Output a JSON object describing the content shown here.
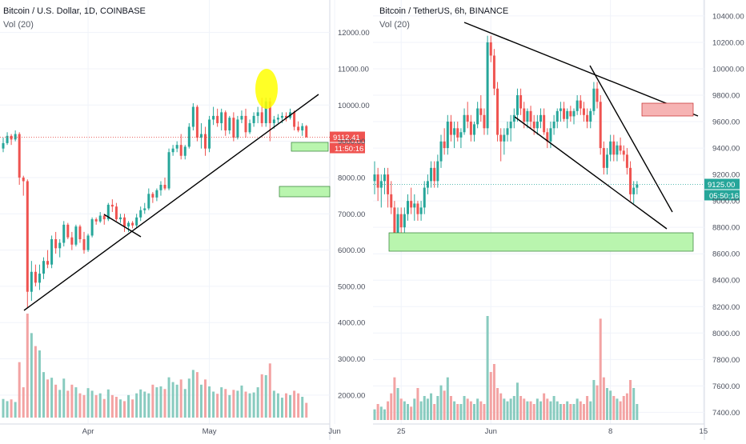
{
  "colors": {
    "up": "#26a69a",
    "down": "#ef5350",
    "up_vol": "#88cbbf",
    "down_vol": "#f3a3a3",
    "grid": "#f0f3fa",
    "axis_text": "#4a4f5c",
    "price_line": "#e53935",
    "price_line_right": "#26a69a",
    "zone_green": "#b9f5ae",
    "zone_red": "#f6b3b3",
    "highlight": "#ffff00"
  },
  "chart_data": [
    {
      "type": "candlestick",
      "title": "Bitcoin / U.S. Dollar, 1D, COINBASE",
      "volume_label": "Vol (20)",
      "y_ticks": [
        "12000.00",
        "11000.00",
        "10000.00",
        "9000.00",
        "8000.00",
        "7000.00",
        "6000.00",
        "5000.00",
        "4000.00",
        "3000.00",
        "2000.00"
      ],
      "x_ticks": [
        "Apr",
        "May",
        "Jun"
      ],
      "last_price": "9112.41",
      "countdown": "11:50:16",
      "ylim": [
        1600,
        12500
      ],
      "x_tick_index": [
        21,
        51,
        82
      ],
      "candles": [
        [
          8800,
          9100,
          8700,
          8950
        ],
        [
          8950,
          9250,
          8900,
          9150
        ],
        [
          9150,
          9200,
          8900,
          9050
        ],
        [
          9050,
          9300,
          9000,
          9200
        ],
        [
          9200,
          9250,
          7800,
          8000
        ],
        [
          8000,
          8050,
          7500,
          7900
        ],
        [
          7900,
          7950,
          4400,
          4850
        ],
        [
          4850,
          5700,
          4600,
          5400
        ],
        [
          5400,
          5600,
          5000,
          5100
        ],
        [
          5100,
          5600,
          4900,
          5350
        ],
        [
          5350,
          5800,
          5200,
          5700
        ],
        [
          5700,
          6000,
          5500,
          5600
        ],
        [
          5600,
          6400,
          5500,
          6300
        ],
        [
          6300,
          6500,
          5900,
          6050
        ],
        [
          6050,
          6300,
          5800,
          6200
        ],
        [
          6200,
          6800,
          6100,
          6700
        ],
        [
          6700,
          6750,
          6300,
          6350
        ],
        [
          6350,
          6500,
          6000,
          6150
        ],
        [
          6150,
          6700,
          6100,
          6650
        ],
        [
          6650,
          6700,
          6200,
          6300
        ],
        [
          6300,
          6500,
          5900,
          6000
        ],
        [
          6000,
          6450,
          5950,
          6400
        ],
        [
          6400,
          6900,
          6350,
          6850
        ],
        [
          6850,
          6900,
          6700,
          6790
        ],
        [
          6790,
          7050,
          6750,
          6950
        ],
        [
          6950,
          7000,
          6700,
          6850
        ],
        [
          6850,
          7300,
          6800,
          7250
        ],
        [
          7250,
          7400,
          7050,
          7200
        ],
        [
          7200,
          7300,
          6800,
          6850
        ],
        [
          6850,
          7000,
          6750,
          6900
        ],
        [
          6900,
          7000,
          6500,
          6650
        ],
        [
          6650,
          6800,
          6500,
          6750
        ],
        [
          6750,
          6800,
          6600,
          6680
        ],
        [
          6680,
          7000,
          6600,
          6900
        ],
        [
          6900,
          7200,
          6800,
          7100
        ],
        [
          7100,
          7300,
          7000,
          7150
        ],
        [
          7150,
          7700,
          7100,
          7550
        ],
        [
          7550,
          7600,
          7300,
          7450
        ],
        [
          7450,
          7700,
          7350,
          7650
        ],
        [
          7650,
          7900,
          7500,
          7800
        ],
        [
          7800,
          8000,
          7650,
          7700
        ],
        [
          7700,
          8800,
          7650,
          8700
        ],
        [
          8700,
          8900,
          8600,
          8800
        ],
        [
          8800,
          9000,
          8700,
          8900
        ],
        [
          8900,
          9200,
          8500,
          8600
        ],
        [
          8600,
          8900,
          8500,
          8850
        ],
        [
          8850,
          9500,
          8800,
          9400
        ],
        [
          9400,
          10050,
          9300,
          9950
        ],
        [
          9950,
          10000,
          9000,
          9100
        ],
        [
          9100,
          9500,
          8800,
          9200
        ],
        [
          9200,
          9400,
          8600,
          8800
        ],
        [
          8800,
          9700,
          8700,
          9600
        ],
        [
          9600,
          9950,
          9450,
          9700
        ],
        [
          9700,
          9900,
          9400,
          9500
        ],
        [
          9500,
          9900,
          9300,
          9800
        ],
        [
          9800,
          9850,
          9150,
          9300
        ],
        [
          9300,
          9700,
          9200,
          9650
        ],
        [
          9650,
          9800,
          9000,
          9100
        ],
        [
          9100,
          9700,
          9050,
          9600
        ],
        [
          9600,
          9850,
          9500,
          9700
        ],
        [
          9700,
          9900,
          9100,
          9250
        ],
        [
          9250,
          9600,
          9200,
          9500
        ],
        [
          9500,
          9800,
          9400,
          9700
        ],
        [
          9700,
          9950,
          9500,
          9800
        ],
        [
          9800,
          10200,
          9400,
          9500
        ],
        [
          9500,
          10200,
          9400,
          10100
        ],
        [
          10100,
          10200,
          9000,
          9500
        ],
        [
          9500,
          9700,
          9350,
          9600
        ],
        [
          9600,
          9750,
          9500,
          9650
        ],
        [
          9650,
          9800,
          9500,
          9700
        ],
        [
          9700,
          9800,
          9550,
          9650
        ],
        [
          9650,
          9900,
          9600,
          9800
        ],
        [
          9800,
          9850,
          9300,
          9400
        ],
        [
          9400,
          9550,
          9250,
          9300
        ],
        [
          9300,
          9500,
          9150,
          9420
        ],
        [
          9420,
          9450,
          9100,
          9112
        ]
      ],
      "volumes": [
        430,
        380,
        420,
        360,
        1280,
        700,
        2400,
        1950,
        1650,
        1550,
        1050,
        880,
        920,
        760,
        640,
        900,
        620,
        760,
        700,
        560,
        520,
        680,
        620,
        520,
        560,
        430,
        650,
        520,
        480,
        420,
        380,
        520,
        420,
        560,
        650,
        600,
        560,
        760,
        700,
        720,
        660,
        930,
        820,
        760,
        880,
        660,
        900,
        1100,
        1050,
        760,
        880,
        720,
        600,
        550,
        700,
        660,
        520,
        640,
        620,
        740,
        600,
        560,
        580,
        700,
        1000,
        980,
        1250,
        620,
        560,
        460,
        560,
        520,
        620,
        560,
        480,
        340
      ],
      "annotations": {
        "support_trendline": "ascending line beneath the lows",
        "small_line": "short descending segment in April",
        "highlight": "yellow ellipse at the June top",
        "zones": "two green support boxes"
      }
    },
    {
      "type": "candlestick",
      "title": "Bitcoin / TetherUS, 6h, BINANCE",
      "volume_label": "Vol (20)",
      "y_ticks": [
        "10400.00",
        "10200.00",
        "10000.00",
        "9800.00",
        "9600.00",
        "9400.00",
        "9200.00",
        "9000.00",
        "8800.00",
        "8600.00",
        "8400.00",
        "8200.00",
        "8000.00",
        "7800.00",
        "7600.00",
        "7400.00"
      ],
      "x_ticks": [
        "25",
        "Jun",
        "8",
        "15"
      ],
      "last_price": "9125.00",
      "countdown": "05:50:16",
      "ylim": [
        7360,
        10460
      ],
      "x_tick_index": [
        8,
        35,
        71,
        99
      ],
      "candles": [
        [
          9150,
          9300,
          9050,
          9200
        ],
        [
          9200,
          9250,
          9000,
          9100
        ],
        [
          9100,
          9200,
          8950,
          9150
        ],
        [
          9150,
          9250,
          9050,
          9200
        ],
        [
          9200,
          9250,
          8950,
          9050
        ],
        [
          9050,
          9150,
          8900,
          8950
        ],
        [
          8950,
          9000,
          8700,
          8750
        ],
        [
          8750,
          8950,
          8720,
          8900
        ],
        [
          8900,
          8950,
          8750,
          8800
        ],
        [
          8800,
          8950,
          8750,
          8900
        ],
        [
          8900,
          9050,
          8850,
          9000
        ],
        [
          9000,
          9100,
          8900,
          8950
        ],
        [
          8950,
          9050,
          8850,
          8980
        ],
        [
          8980,
          9000,
          8850,
          8900
        ],
        [
          8900,
          9000,
          8850,
          8950
        ],
        [
          8950,
          9150,
          8900,
          9100
        ],
        [
          9100,
          9200,
          9050,
          9150
        ],
        [
          9150,
          9300,
          9100,
          9250
        ],
        [
          9250,
          9300,
          9100,
          9150
        ],
        [
          9150,
          9350,
          9100,
          9300
        ],
        [
          9300,
          9500,
          9250,
          9450
        ],
        [
          9450,
          9550,
          9350,
          9400
        ],
        [
          9400,
          9650,
          9350,
          9600
        ],
        [
          9600,
          9650,
          9450,
          9500
        ],
        [
          9500,
          9600,
          9400,
          9550
        ],
        [
          9550,
          9600,
          9450,
          9480
        ],
        [
          9480,
          9550,
          9400,
          9520
        ],
        [
          9520,
          9700,
          9500,
          9650
        ],
        [
          9650,
          9750,
          9550,
          9600
        ],
        [
          9600,
          9650,
          9450,
          9500
        ],
        [
          9500,
          9600,
          9450,
          9580
        ],
        [
          9580,
          9750,
          9550,
          9700
        ],
        [
          9700,
          9800,
          9600,
          9650
        ],
        [
          9650,
          9700,
          9500,
          9550
        ],
        [
          9550,
          10250,
          9500,
          10200
        ],
        [
          10200,
          10250,
          10050,
          10100
        ],
        [
          10100,
          10150,
          9800,
          9850
        ],
        [
          9850,
          9900,
          9450,
          9500
        ],
        [
          9500,
          9550,
          9300,
          9450
        ],
        [
          9450,
          9550,
          9350,
          9500
        ],
        [
          9500,
          9600,
          9450,
          9550
        ],
        [
          9550,
          9650,
          9450,
          9600
        ],
        [
          9600,
          9700,
          9550,
          9650
        ],
        [
          9650,
          9850,
          9600,
          9800
        ],
        [
          9800,
          9850,
          9650,
          9700
        ],
        [
          9700,
          9750,
          9550,
          9600
        ],
        [
          9600,
          9700,
          9550,
          9680
        ],
        [
          9680,
          9720,
          9550,
          9600
        ],
        [
          9600,
          9650,
          9500,
          9550
        ],
        [
          9550,
          9650,
          9500,
          9600
        ],
        [
          9600,
          9700,
          9550,
          9650
        ],
        [
          9650,
          9700,
          9500,
          9520
        ],
        [
          9520,
          9550,
          9400,
          9450
        ],
        [
          9450,
          9600,
          9400,
          9550
        ],
        [
          9550,
          9650,
          9500,
          9600
        ],
        [
          9600,
          9700,
          9550,
          9680
        ],
        [
          9680,
          9750,
          9600,
          9700
        ],
        [
          9700,
          9750,
          9600,
          9620
        ],
        [
          9620,
          9700,
          9550,
          9680
        ],
        [
          9680,
          9720,
          9600,
          9640
        ],
        [
          9640,
          9700,
          9580,
          9680
        ],
        [
          9680,
          9800,
          9650,
          9760
        ],
        [
          9760,
          9800,
          9650,
          9700
        ],
        [
          9700,
          9750,
          9600,
          9650
        ],
        [
          9650,
          9700,
          9550,
          9600
        ],
        [
          9600,
          9700,
          9550,
          9680
        ],
        [
          9680,
          9900,
          9650,
          9850
        ],
        [
          9850,
          9900,
          9700,
          9750
        ],
        [
          9750,
          9800,
          9350,
          9400
        ],
        [
          9400,
          9450,
          9200,
          9250
        ],
        [
          9250,
          9400,
          9200,
          9350
        ],
        [
          9350,
          9500,
          9300,
          9450
        ],
        [
          9450,
          9500,
          9300,
          9350
        ],
        [
          9350,
          9450,
          9300,
          9420
        ],
        [
          9420,
          9480,
          9350,
          9380
        ],
        [
          9380,
          9420,
          9300,
          9350
        ],
        [
          9350,
          9400,
          9200,
          9250
        ],
        [
          9250,
          9300,
          9000,
          9050
        ],
        [
          9050,
          9150,
          8980,
          9100
        ],
        [
          9100,
          9150,
          9050,
          9125
        ]
      ],
      "volumes": [
        40,
        60,
        50,
        40,
        70,
        100,
        160,
        120,
        80,
        70,
        60,
        50,
        80,
        120,
        70,
        90,
        80,
        100,
        60,
        90,
        130,
        110,
        160,
        90,
        70,
        60,
        60,
        90,
        80,
        70,
        60,
        80,
        70,
        60,
        390,
        180,
        210,
        120,
        100,
        80,
        70,
        80,
        90,
        140,
        90,
        80,
        70,
        70,
        60,
        80,
        70,
        100,
        80,
        70,
        90,
        70,
        60,
        60,
        70,
        60,
        60,
        80,
        70,
        60,
        90,
        70,
        150,
        130,
        380,
        160,
        120,
        110,
        90,
        80,
        70,
        90,
        100,
        150,
        120,
        60
      ],
      "annotations": {
        "upper_trendline": "descending line from the top",
        "falling_wedge": "converging lower lines",
        "resistance_zone": "red box near 9600-9700",
        "support_zone": "green box near 8600-8750"
      }
    }
  ]
}
